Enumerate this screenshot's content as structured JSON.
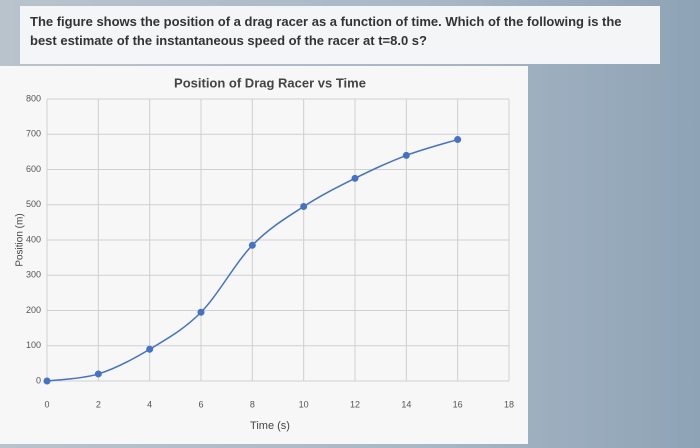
{
  "question": "The figure shows the position of a drag racer as a function of time. Which of the following is the best estimate of the instantaneous speed of the racer at t=8.0 s?",
  "chart_data": {
    "type": "line",
    "title": "Position of Drag Racer vs Time",
    "x_label": "Time (s)",
    "y_label": "Position (m)",
    "x": [
      0,
      2,
      4,
      6,
      8,
      10,
      12,
      14,
      16
    ],
    "series": [
      {
        "name": "Position",
        "color": "#4472c4",
        "values": [
          0,
          20,
          90,
          195,
          385,
          495,
          575,
          640,
          685
        ]
      }
    ],
    "xlim": [
      0,
      18
    ],
    "xticks": [
      0,
      2,
      4,
      6,
      8,
      10,
      12,
      14,
      16,
      18
    ],
    "ylim": [
      0,
      800
    ],
    "yticks": [
      0,
      100,
      200,
      300,
      400,
      500,
      600,
      700,
      800
    ],
    "grid": true
  }
}
